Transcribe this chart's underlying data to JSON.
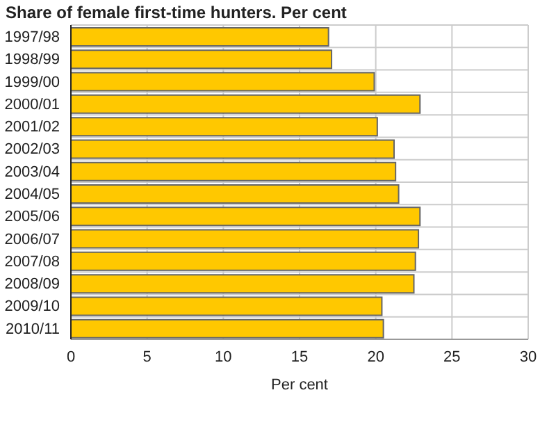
{
  "chart_data": {
    "type": "bar",
    "orientation": "horizontal",
    "title": "Share of female first-time hunters. Per cent",
    "xlabel": "Per cent",
    "categories": [
      "1997/98",
      "1998/99",
      "1999/00",
      "2000/01",
      "2001/02",
      "2002/03",
      "2003/04",
      "2004/05",
      "2005/06",
      "2006/07",
      "2007/08",
      "2008/09",
      "2009/10",
      "2010/11"
    ],
    "values": [
      16.9,
      17.1,
      19.9,
      22.9,
      20.1,
      21.2,
      21.3,
      21.5,
      22.9,
      22.8,
      22.6,
      22.5,
      20.4,
      20.5
    ],
    "color": "#ffc800",
    "xlim": [
      0,
      30
    ],
    "xticks": [
      0,
      5,
      10,
      15,
      20,
      25,
      30
    ],
    "grid": true
  }
}
